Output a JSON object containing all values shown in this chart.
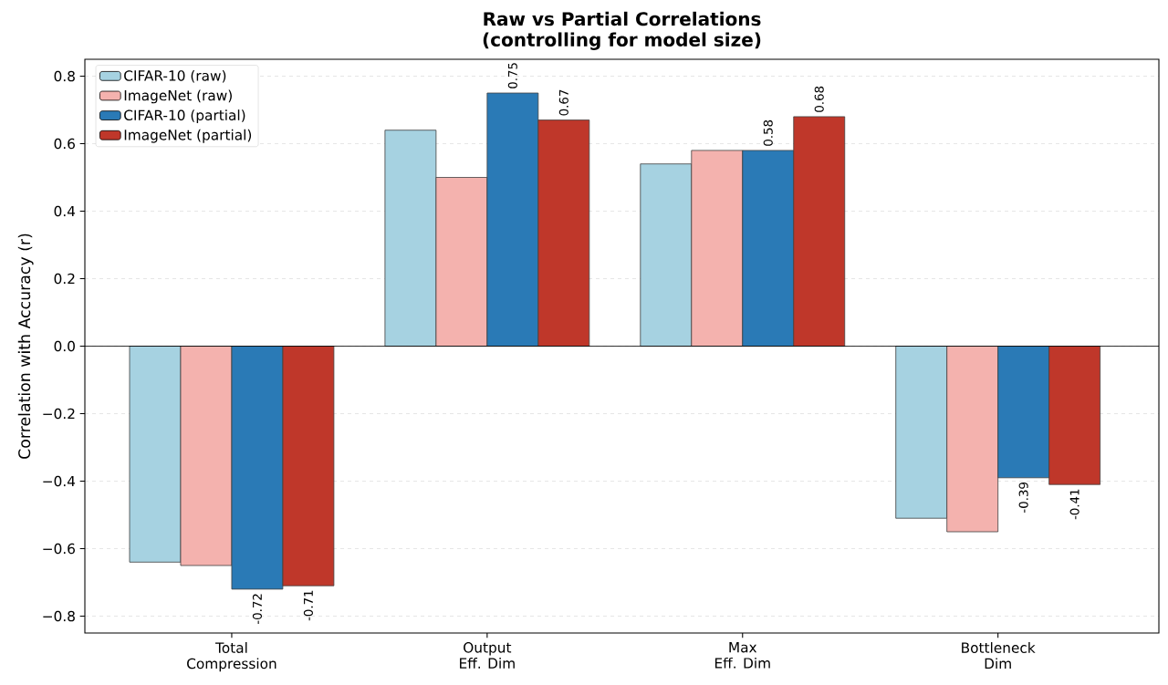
{
  "chart_data": {
    "type": "bar",
    "title": "Raw vs Partial Correlations\n(controlling for model size)",
    "ylabel": "Correlation with Accuracy (r)",
    "categories": [
      "Total\nCompression",
      "Output\nEff. Dim",
      "Max\nEff. Dim",
      "Bottleneck\nDim"
    ],
    "series": [
      {
        "name": "CIFAR-10 (raw)",
        "color": "#a6d2e1",
        "values": [
          -0.64,
          0.64,
          0.54,
          -0.51
        ]
      },
      {
        "name": "ImageNet (raw)",
        "color": "#f4b2ae",
        "values": [
          -0.65,
          0.5,
          0.58,
          -0.55
        ]
      },
      {
        "name": "CIFAR-10 (partial)",
        "color": "#2a7ab6",
        "values": [
          -0.72,
          0.75,
          0.58,
          -0.39
        ],
        "value_labels": [
          "-0.72",
          "0.75",
          "0.58",
          "-0.39"
        ]
      },
      {
        "name": "ImageNet (partial)",
        "color": "#bf372a",
        "values": [
          -0.71,
          0.67,
          0.68,
          -0.41
        ],
        "value_labels": [
          "-0.71",
          "0.67",
          "0.68",
          "-0.41"
        ]
      }
    ],
    "ylim": [
      -0.85,
      0.85
    ],
    "yticks": [
      {
        "value": -0.8,
        "label": "−0.8"
      },
      {
        "value": -0.6,
        "label": "−0.6"
      },
      {
        "value": -0.4,
        "label": "−0.4"
      },
      {
        "value": -0.2,
        "label": "−0.2"
      },
      {
        "value": 0,
        "label": "0.0"
      },
      0.2,
      0.4,
      0.6,
      0.8
    ],
    "ref_lines": [
      {
        "axis": "y",
        "value": 0,
        "color": "#000000"
      }
    ],
    "grid": "y",
    "legend": "top left"
  }
}
